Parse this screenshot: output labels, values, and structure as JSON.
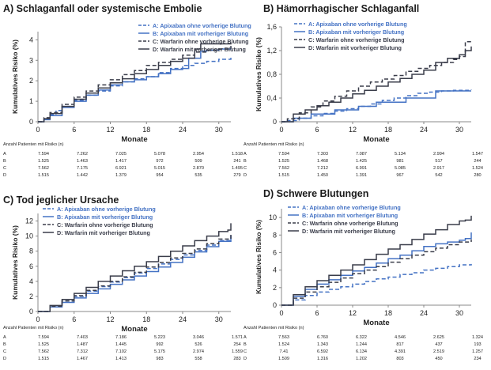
{
  "chart_data": [
    {
      "type": "line",
      "title": "A) Schlaganfall oder systemische Embolie",
      "xlabel": "Monate",
      "ylabel": "Kumulatives Risiko (%)",
      "xlim": [
        0,
        32
      ],
      "ylim": [
        0,
        4.4
      ],
      "xticks": [
        "0",
        "6",
        "12",
        "18",
        "24",
        "30"
      ],
      "yticks": [
        "0",
        "1",
        "2",
        "3",
        "4"
      ],
      "legend_position": "top-right",
      "series": [
        {
          "name": "A: Apixaban ohne vorherige Blutung",
          "x": [
            0,
            1,
            2,
            3,
            4,
            6,
            8,
            10,
            12,
            14,
            16,
            18,
            20,
            22,
            24,
            26,
            28,
            30,
            32
          ],
          "y": [
            0,
            0.15,
            0.35,
            0.55,
            0.75,
            1.05,
            1.3,
            1.5,
            1.75,
            1.95,
            2.1,
            2.2,
            2.4,
            2.6,
            2.75,
            2.85,
            2.95,
            3.05,
            3.2
          ]
        },
        {
          "name": "B: Apixaban mit vorheriger Blutung",
          "x": [
            0,
            1,
            2,
            4,
            6,
            8,
            10,
            12,
            14,
            16,
            18,
            20,
            22,
            24,
            25,
            27,
            28,
            30,
            32
          ],
          "y": [
            0,
            0.1,
            0.3,
            0.7,
            1.0,
            1.3,
            1.55,
            1.8,
            1.95,
            2.05,
            2.2,
            2.35,
            2.55,
            2.6,
            3.1,
            3.45,
            3.5,
            3.55,
            3.65
          ]
        },
        {
          "name": "C: Warfarin ohne vorherige Blutung",
          "x": [
            0,
            1,
            2,
            4,
            6,
            8,
            10,
            12,
            14,
            16,
            18,
            20,
            22,
            24,
            26,
            28,
            30,
            32
          ],
          "y": [
            0,
            0.2,
            0.45,
            0.85,
            1.2,
            1.5,
            1.8,
            2.05,
            2.3,
            2.5,
            2.75,
            2.9,
            3.05,
            3.25,
            3.4,
            3.5,
            3.55,
            3.7
          ]
        },
        {
          "name": "D: Warfarin mit vorheriger Blutung",
          "x": [
            0,
            1,
            2,
            4,
            6,
            8,
            10,
            12,
            14,
            16,
            18,
            20,
            22,
            24,
            26,
            27,
            28,
            30,
            32
          ],
          "y": [
            0,
            0.15,
            0.4,
            0.75,
            1.1,
            1.4,
            1.65,
            1.9,
            2.1,
            2.35,
            2.55,
            2.75,
            2.95,
            3.1,
            3.55,
            3.8,
            3.8,
            3.8,
            3.85
          ]
        }
      ],
      "risk_table": {
        "caption": "Anzahl Patienten mit Risiko (n)",
        "rows": [
          {
            "label": "A",
            "values": [
              "7.594",
              "7.262",
              "7.025",
              "5.078",
              "2.954",
              "1.518"
            ]
          },
          {
            "label": "B",
            "values": [
              "1.525",
              "1.463",
              "1.417",
              "972",
              "509",
              "241"
            ]
          },
          {
            "label": "C",
            "values": [
              "7.562",
              "7.175",
              "6.921",
              "5.015",
              "2.870",
              "1.495"
            ]
          },
          {
            "label": "D",
            "values": [
              "1.515",
              "1.442",
              "1.379",
              "954",
              "535",
              "279"
            ]
          }
        ]
      }
    },
    {
      "type": "line",
      "title": "B) Hämorrhagischer Schlaganfall",
      "xlabel": "Monate",
      "ylabel": "Kumulatives Risiko (%)",
      "xlim": [
        0,
        32
      ],
      "ylim": [
        0,
        1.6
      ],
      "xticks": [
        "0",
        "6",
        "12",
        "18",
        "24",
        "30"
      ],
      "yticks": [
        "0",
        "0,4",
        "0,8",
        "1,2",
        "1,6"
      ],
      "legend_position": "top-left",
      "series": [
        {
          "name": "A: Apixaban ohne vorherige Blutung",
          "x": [
            0,
            1,
            3,
            5,
            7,
            9,
            11,
            13,
            15,
            17,
            19,
            21,
            23,
            25,
            27,
            29,
            32
          ],
          "y": [
            0,
            0.02,
            0.06,
            0.1,
            0.14,
            0.18,
            0.22,
            0.26,
            0.3,
            0.36,
            0.4,
            0.44,
            0.48,
            0.5,
            0.52,
            0.53,
            0.54
          ]
        },
        {
          "name": "B: Apixaban mit vorheriger Blutung",
          "x": [
            0,
            2,
            4,
            5,
            9,
            12,
            13,
            16,
            19,
            21,
            25,
            26,
            28,
            32
          ],
          "y": [
            0,
            0.06,
            0.06,
            0.13,
            0.2,
            0.2,
            0.26,
            0.33,
            0.33,
            0.4,
            0.4,
            0.52,
            0.52,
            0.52
          ]
        },
        {
          "name": "C: Warfarin ohne vorherige Blutung",
          "x": [
            0,
            1,
            3,
            5,
            7,
            9,
            11,
            13,
            15,
            17,
            19,
            21,
            23,
            25,
            27,
            29,
            30,
            31,
            32
          ],
          "y": [
            0,
            0.05,
            0.15,
            0.25,
            0.35,
            0.43,
            0.52,
            0.6,
            0.67,
            0.72,
            0.78,
            0.85,
            0.9,
            0.95,
            1.0,
            1.05,
            1.1,
            1.35,
            1.38
          ]
        },
        {
          "name": "D: Warfarin mit vorheriger Blutung",
          "x": [
            0,
            2,
            4,
            6,
            8,
            10,
            12,
            14,
            16,
            18,
            20,
            22,
            24,
            26,
            28,
            30,
            31,
            32
          ],
          "y": [
            0,
            0.13,
            0.2,
            0.27,
            0.33,
            0.4,
            0.47,
            0.53,
            0.6,
            0.67,
            0.73,
            0.8,
            0.87,
            1.0,
            1.07,
            1.13,
            1.2,
            1.27
          ]
        }
      ],
      "risk_table": {
        "caption": "Anzahl Patienten mit Risiko (n)",
        "rows": [
          {
            "label": "A",
            "values": [
              "7.594",
              "7.303",
              "7.087",
              "5.134",
              "2.994",
              "1.547"
            ]
          },
          {
            "label": "B",
            "values": [
              "1.525",
              "1.468",
              "1.425",
              "981",
              "517",
              "244"
            ]
          },
          {
            "label": "C",
            "values": [
              "7.562",
              "7.212",
              "6.991",
              "5.085",
              "2.917",
              "1.524"
            ]
          },
          {
            "label": "D",
            "values": [
              "1.515",
              "1.450",
              "1.391",
              "967",
              "542",
              "280"
            ]
          }
        ]
      }
    },
    {
      "type": "line",
      "title": "C) Tod jeglicher Ursache",
      "xlabel": "Monate",
      "ylabel": "Kumulatives Risiko (%)",
      "xlim": [
        0,
        32
      ],
      "ylim": [
        0,
        13
      ],
      "xticks": [
        "0",
        "6",
        "12",
        "18",
        "24",
        "30"
      ],
      "yticks": [
        "0",
        "2",
        "4",
        "6",
        "8",
        "10",
        "12"
      ],
      "legend_position": "top-left",
      "series": [
        {
          "name": "A: Apixaban ohne vorherige Blutung",
          "x": [
            0,
            2,
            4,
            6,
            8,
            10,
            12,
            14,
            16,
            18,
            20,
            22,
            24,
            26,
            28,
            30,
            32
          ],
          "y": [
            0,
            0.7,
            1.4,
            2.0,
            2.7,
            3.3,
            3.9,
            4.5,
            5.1,
            5.7,
            6.3,
            6.9,
            7.5,
            8.1,
            8.8,
            9.4,
            10.1
          ]
        },
        {
          "name": "B: Apixaban mit vorheriger Blutung",
          "x": [
            0,
            2,
            4,
            6,
            8,
            10,
            12,
            14,
            16,
            18,
            20,
            22,
            24,
            26,
            28,
            30,
            32
          ],
          "y": [
            0,
            0.6,
            1.2,
            1.8,
            2.4,
            3.0,
            3.6,
            4.2,
            4.7,
            5.3,
            5.9,
            6.5,
            7.2,
            7.9,
            8.6,
            9.3,
            10.0
          ]
        },
        {
          "name": "C: Warfarin ohne vorherige Blutung",
          "x": [
            0,
            2,
            4,
            6,
            8,
            10,
            12,
            14,
            16,
            18,
            20,
            22,
            24,
            26,
            28,
            30,
            32
          ],
          "y": [
            0,
            0.7,
            1.4,
            2.1,
            2.8,
            3.4,
            4.0,
            4.6,
            5.2,
            5.9,
            6.5,
            7.1,
            7.7,
            8.3,
            9.0,
            9.6,
            10.3
          ]
        },
        {
          "name": "D: Warfarin mit vorheriger Blutung",
          "x": [
            0,
            2,
            4,
            6,
            8,
            10,
            12,
            14,
            16,
            18,
            20,
            22,
            24,
            26,
            28,
            30,
            31.5,
            32
          ],
          "y": [
            0,
            0.8,
            1.6,
            2.4,
            3.2,
            4.0,
            4.7,
            5.4,
            6.0,
            6.6,
            7.3,
            8.0,
            8.7,
            9.4,
            10.0,
            10.6,
            10.8,
            11.7
          ]
        }
      ],
      "risk_table": {
        "caption": "Anzahl Patienten mit Risiko (n)",
        "rows": [
          {
            "label": "A",
            "values": [
              "7.594",
              "7.403",
              "7.186",
              "5.223",
              "3.046",
              "1.571"
            ]
          },
          {
            "label": "B",
            "values": [
              "1.525",
              "1.487",
              "1.445",
              "992",
              "526",
              "254"
            ]
          },
          {
            "label": "C",
            "values": [
              "7.562",
              "7.312",
              "7.102",
              "5.175",
              "2.974",
              "1.559"
            ]
          },
          {
            "label": "D",
            "values": [
              "1.515",
              "1.467",
              "1.413",
              "983",
              "558",
              "283"
            ]
          }
        ]
      }
    },
    {
      "type": "line",
      "title": "D) Schwere Blutungen",
      "xlabel": "Monate",
      "ylabel": "Kumulatives Risiko (%)",
      "xlim": [
        0,
        32
      ],
      "ylim": [
        0,
        11
      ],
      "xticks": [
        "0",
        "6",
        "12",
        "18",
        "24",
        "30"
      ],
      "yticks": [
        "0",
        "2",
        "4",
        "6",
        "8",
        "10"
      ],
      "legend_position": "top-left",
      "series": [
        {
          "name": "A: Apixaban ohne vorherige Blutung",
          "x": [
            0,
            2,
            4,
            6,
            8,
            10,
            12,
            14,
            16,
            18,
            20,
            22,
            24,
            26,
            28,
            30,
            32
          ],
          "y": [
            0,
            0.6,
            1.1,
            1.5,
            1.8,
            2.1,
            2.4,
            2.7,
            3.0,
            3.2,
            3.5,
            3.7,
            4.0,
            4.2,
            4.4,
            4.6,
            4.7
          ]
        },
        {
          "name": "B: Apixaban mit vorheriger Blutung",
          "x": [
            0,
            2,
            4,
            6,
            8,
            10,
            12,
            14,
            16,
            18,
            20,
            22,
            24,
            26,
            28,
            30,
            31,
            32
          ],
          "y": [
            0,
            1.0,
            1.8,
            2.4,
            2.9,
            3.4,
            3.9,
            4.3,
            4.8,
            5.3,
            5.7,
            6.2,
            6.7,
            7.0,
            7.2,
            7.4,
            7.6,
            8.3
          ]
        },
        {
          "name": "C: Warfarin ohne vorherige Blutung",
          "x": [
            0,
            2,
            4,
            6,
            8,
            10,
            12,
            14,
            16,
            18,
            20,
            22,
            24,
            26,
            28,
            30,
            32
          ],
          "y": [
            0,
            0.8,
            1.5,
            2.1,
            2.6,
            3.1,
            3.6,
            4.0,
            4.4,
            4.9,
            5.3,
            5.7,
            6.1,
            6.5,
            6.9,
            7.2,
            7.5
          ]
        },
        {
          "name": "D: Warfarin mit vorheriger Blutung",
          "x": [
            0,
            2,
            4,
            6,
            8,
            10,
            12,
            14,
            16,
            18,
            20,
            22,
            24,
            26,
            28,
            30,
            31,
            32
          ],
          "y": [
            0,
            1.2,
            2.1,
            2.8,
            3.4,
            4.0,
            4.6,
            5.2,
            5.8,
            6.4,
            6.9,
            7.5,
            8.1,
            8.6,
            9.2,
            9.6,
            9.7,
            10.2
          ]
        }
      ],
      "risk_table": {
        "caption": "Anzahl Patienten mit Risiko (n)",
        "rows": [
          {
            "label": "A",
            "values": [
              "7.563",
              "6.760",
              "6.322",
              "4.546",
              "2.625",
              "1.324"
            ]
          },
          {
            "label": "B",
            "values": [
              "1.524",
              "1.343",
              "1.244",
              "817",
              "437",
              "193"
            ]
          },
          {
            "label": "C",
            "values": [
              "7.41",
              "6.592",
              "6.134",
              "4.391",
              "2.519",
              "1.257"
            ]
          },
          {
            "label": "D",
            "values": [
              "1.509",
              "1.316",
              "1.202",
              "803",
              "450",
              "234"
            ]
          }
        ]
      }
    }
  ],
  "colors": {
    "A": "#4472c4",
    "B": "#4472c4",
    "C": "#3a3d4a",
    "D": "#3a3d4a",
    "axis": "#888888"
  },
  "dash": {
    "A": true,
    "B": false,
    "C": true,
    "D": false
  }
}
